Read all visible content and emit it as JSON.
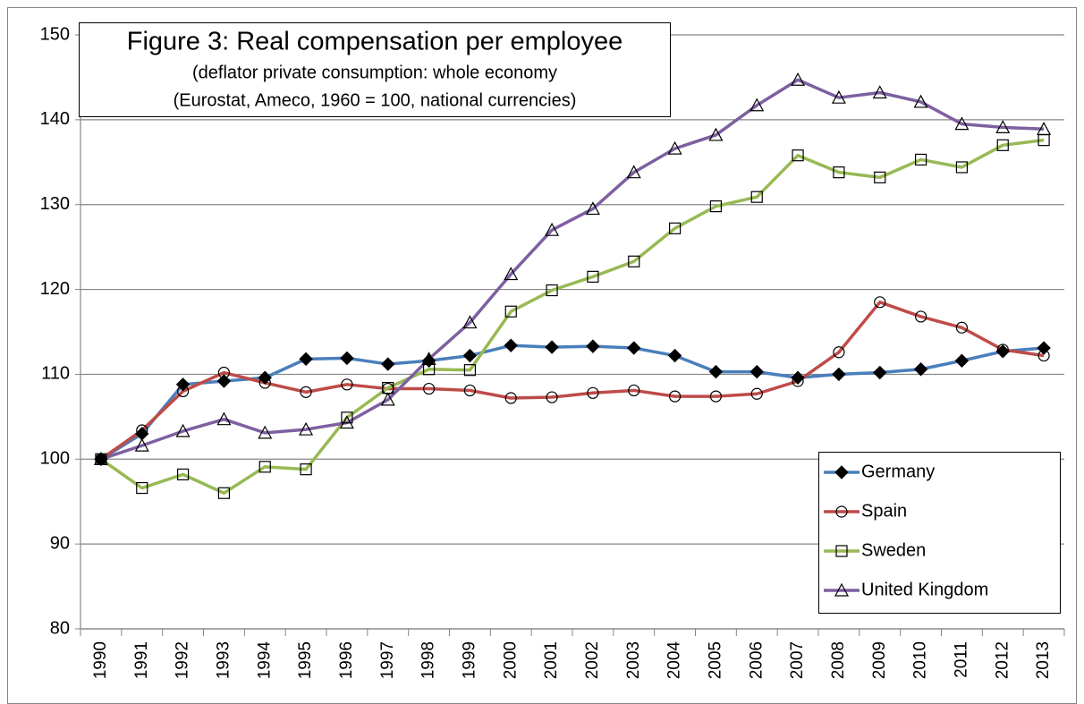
{
  "chart_data": {
    "type": "line",
    "title": "Figure 3: Real compensation per employee",
    "subtitle": [
      "(deflator private consumption: whole economy",
      "(Eurostat, Ameco, 1960 = 100, national currencies)"
    ],
    "categories": [
      "1990",
      "1991",
      "1992",
      "1993",
      "1994",
      "1995",
      "1996",
      "1997",
      "1998",
      "1999",
      "2000",
      "2001",
      "2002",
      "2003",
      "2004",
      "2005",
      "2006",
      "2007",
      "2008",
      "2009",
      "2010",
      "2011",
      "2012",
      "2013"
    ],
    "series": [
      {
        "name": "Germany",
        "color": "#4a7ebb",
        "marker": "diamond",
        "values": [
          100,
          103,
          108.8,
          109.2,
          109.6,
          111.8,
          111.9,
          111.2,
          111.6,
          112.2,
          113.4,
          113.2,
          113.3,
          113.1,
          112.2,
          110.3,
          110.3,
          109.6,
          110,
          110.2,
          110.6,
          111.6,
          112.7,
          113.1
        ]
      },
      {
        "name": "Spain",
        "color": "#be4b48",
        "marker": "circle",
        "values": [
          100,
          103.4,
          108,
          110.2,
          109,
          107.9,
          108.8,
          108.3,
          108.3,
          108.1,
          107.2,
          107.3,
          107.8,
          108.1,
          107.4,
          107.4,
          107.7,
          109.2,
          112.6,
          118.5,
          116.8,
          115.5,
          112.9,
          112.2
        ]
      },
      {
        "name": "Sweden",
        "color": "#98b954",
        "marker": "square",
        "values": [
          100,
          96.6,
          98.2,
          96,
          99.1,
          98.8,
          104.9,
          108.4,
          110.6,
          110.5,
          117.4,
          119.9,
          121.5,
          123.3,
          127.2,
          129.8,
          130.9,
          135.8,
          133.8,
          133.2,
          135.3,
          134.4,
          137,
          137.6
        ]
      },
      {
        "name": "United Kingdom",
        "color": "#7d60a0",
        "marker": "triangle",
        "values": [
          100,
          101.6,
          103.3,
          104.7,
          103.1,
          103.5,
          104.3,
          107,
          111.8,
          116.1,
          121.8,
          127,
          129.5,
          133.8,
          136.6,
          138.2,
          141.7,
          144.7,
          142.6,
          143.2,
          142.1,
          139.5,
          139.1,
          138.9
        ]
      }
    ],
    "ylim": [
      80,
      150
    ],
    "yticks": [
      80,
      90,
      100,
      110,
      120,
      130,
      140,
      150
    ],
    "grid": true,
    "legend": "lower-right"
  }
}
